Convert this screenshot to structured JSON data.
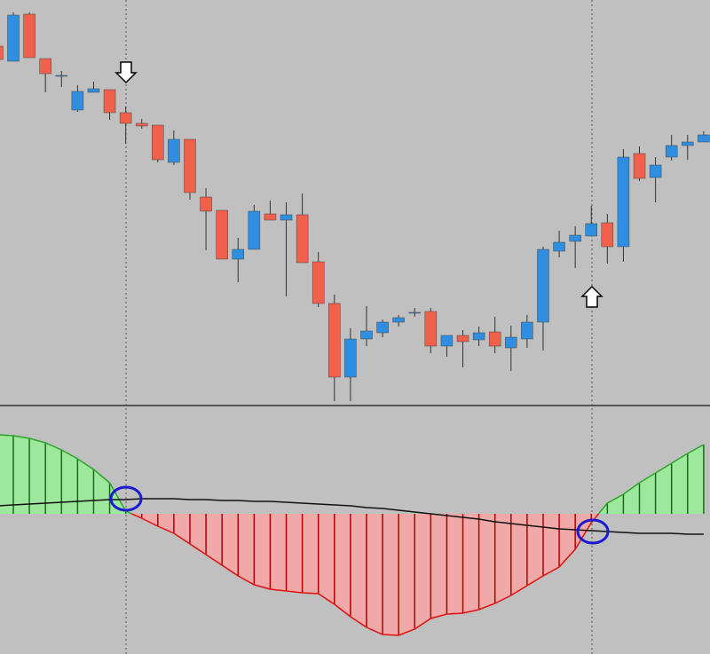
{
  "chart_data": [
    {
      "type": "candlestick",
      "open": [
        408,
        391,
        444,
        394,
        375,
        336,
        356,
        359,
        333,
        321,
        319,
        277,
        303,
        238,
        223,
        168,
        179,
        219,
        212,
        218,
        165,
        118,
        35,
        78,
        85,
        97,
        108,
        109,
        70,
        82,
        77,
        86,
        68,
        78,
        97,
        177,
        188,
        194,
        209,
        182,
        287,
        260,
        283,
        296,
        300
      ],
      "high": [
        415,
        446,
        446,
        394,
        380,
        364,
        368,
        359,
        340,
        326,
        319,
        313,
        303,
        248,
        223,
        192,
        229,
        234,
        232,
        242,
        176,
        128,
        90,
        115,
        100,
        105,
        113,
        113,
        82,
        88,
        92,
        103,
        93,
        105,
        182,
        200,
        205,
        228,
        219,
        292,
        295,
        283,
        308,
        308,
        312
      ],
      "low": [
        393,
        391,
        395,
        356,
        362,
        334,
        356,
        325,
        298,
        315,
        277,
        274,
        235,
        178,
        168,
        142,
        179,
        212,
        126,
        164,
        114,
        8,
        8,
        70,
        80,
        92,
        103,
        62,
        58,
        46,
        70,
        62,
        42,
        68,
        65,
        170,
        158,
        194,
        163,
        165,
        256,
        232,
        279,
        280,
        300
      ],
      "close": [
        393,
        443,
        395,
        377,
        375,
        357,
        360,
        333,
        321,
        318,
        280,
        303,
        243,
        222,
        168,
        179,
        222,
        212,
        218,
        164,
        118,
        35,
        78,
        87,
        97,
        102,
        108,
        70,
        82,
        75,
        85,
        70,
        80,
        97,
        179,
        187,
        195,
        208,
        182,
        283,
        259,
        274,
        296,
        300,
        308
      ],
      "up_color": "#2f8ee0",
      "down_color": "#f0604b",
      "ylim": [
        0,
        460
      ]
    },
    {
      "type": "oscillator",
      "values": [
        89,
        88,
        85,
        80,
        72,
        62,
        50,
        35,
        3,
        -5,
        -14,
        -22,
        -34,
        -46,
        -58,
        -70,
        -80,
        -85,
        -87,
        -89,
        -90,
        -102,
        -116,
        -128,
        -136,
        -137,
        -130,
        -118,
        -113,
        -112,
        -108,
        -101,
        -92,
        -81,
        -70,
        -60,
        -40,
        -10,
        12,
        22,
        35,
        46,
        57,
        68,
        78
      ],
      "signal": [
        9,
        10,
        11,
        12,
        13,
        14,
        15,
        16,
        16,
        17,
        17,
        17,
        16,
        16,
        15,
        15,
        14,
        14,
        13,
        12,
        11,
        10,
        9,
        7,
        6,
        4,
        2,
        0,
        -2,
        -4,
        -6,
        -9,
        -11,
        -13,
        -15,
        -17,
        -18,
        -19,
        -20,
        -21,
        -22,
        -22,
        -22,
        -23,
        -23
      ],
      "positive_color": "#2aa52a",
      "negative_color": "#e01010",
      "positive_fill": "#9ee89e",
      "negative_fill": "#f0a8a8",
      "signal_color": "#111111",
      "ylim": [
        -158,
        119
      ]
    }
  ]
}
